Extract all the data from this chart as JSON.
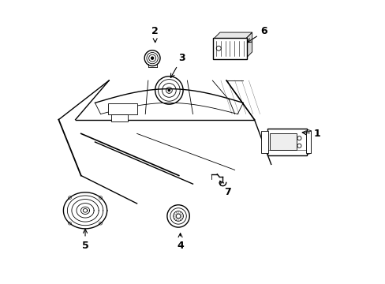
{
  "background_color": "#ffffff",
  "line_color": "#000000",
  "figsize": [
    4.89,
    3.6
  ],
  "dpi": 100,
  "labels_info": [
    [
      1,
      0.945,
      0.53,
      0.88,
      0.535
    ],
    [
      2,
      0.365,
      0.895,
      0.365,
      0.845
    ],
    [
      3,
      0.46,
      0.8,
      0.415,
      0.72
    ],
    [
      4,
      0.455,
      0.13,
      0.455,
      0.185
    ],
    [
      5,
      0.115,
      0.13,
      0.115,
      0.2
    ],
    [
      6,
      0.755,
      0.895,
      0.685,
      0.85
    ],
    [
      7,
      0.625,
      0.32,
      0.59,
      0.37
    ]
  ]
}
